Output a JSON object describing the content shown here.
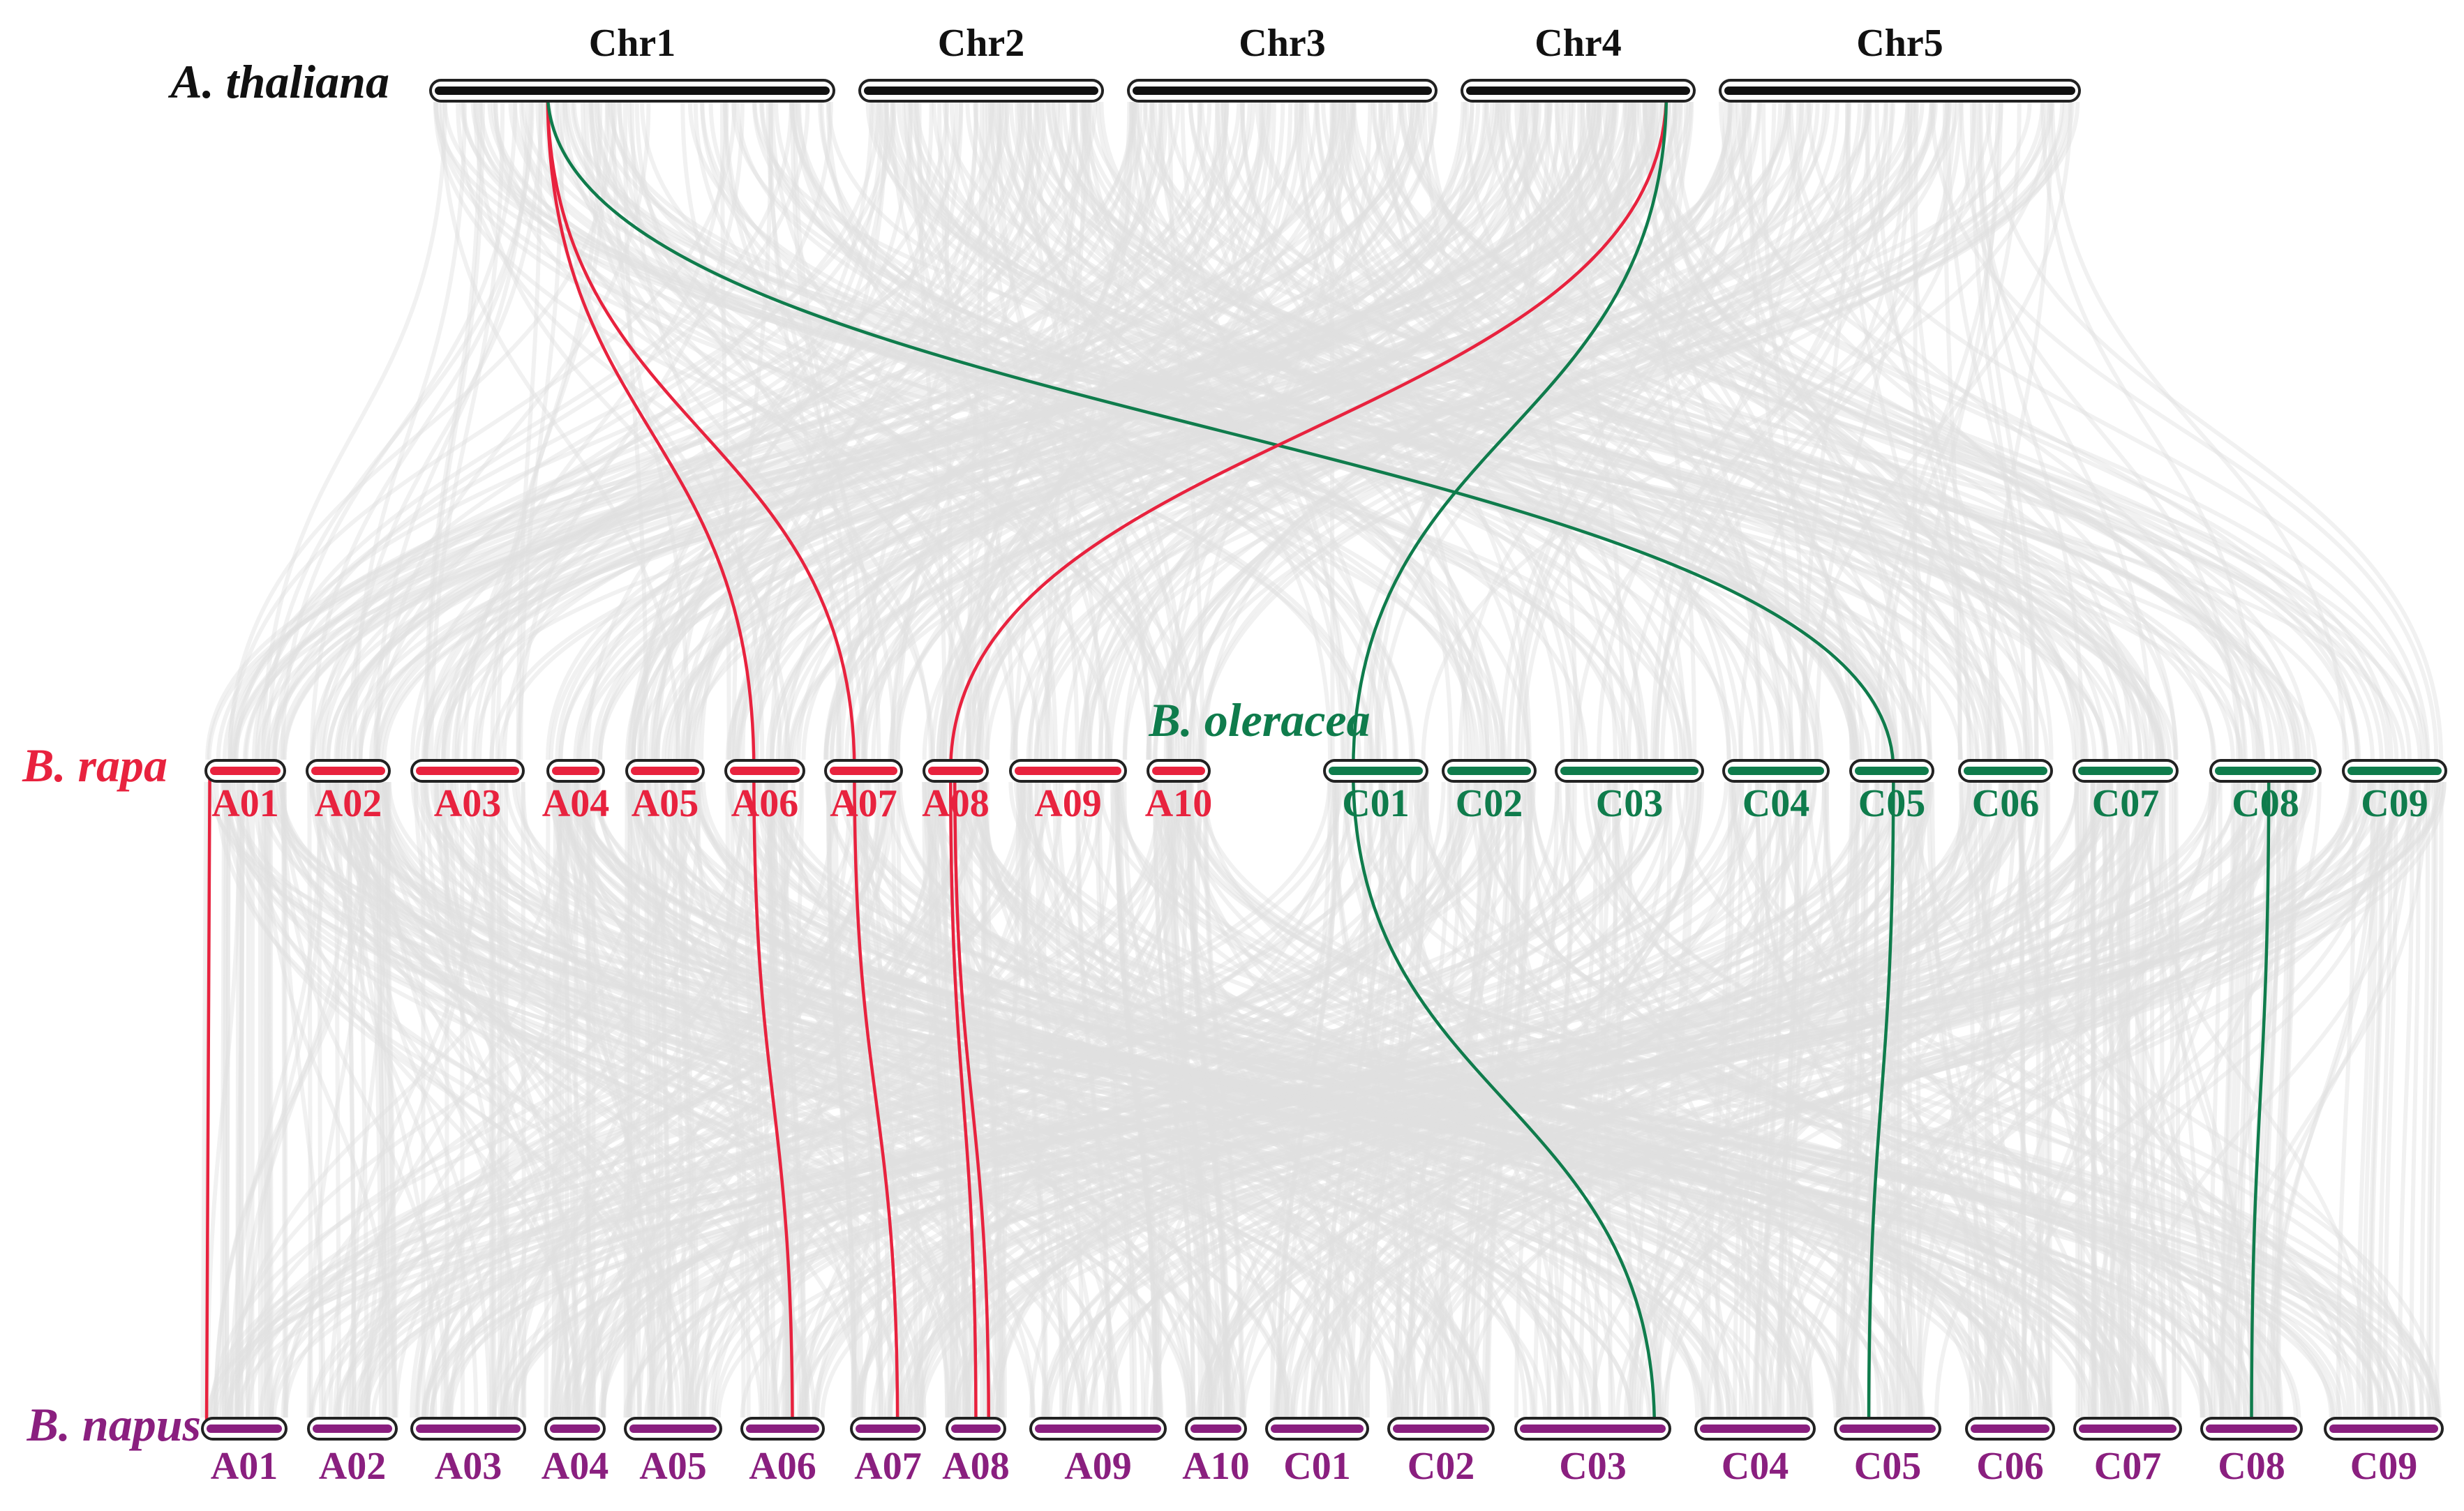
{
  "colors": {
    "thaliana": "#111111",
    "rapa": "#e8223e",
    "oleracea": "#0f7c4c",
    "napus": "#8a1f7f",
    "background_link": "#dfe1e0"
  },
  "species": {
    "thaliana": {
      "name": "A. thaliana",
      "chromosomes": [
        "Chr1",
        "Chr2",
        "Chr3",
        "Chr4",
        "Chr5"
      ]
    },
    "rapa": {
      "name": "B. rapa",
      "chromosomes": [
        "A01",
        "A02",
        "A03",
        "A04",
        "A05",
        "A06",
        "A07",
        "A08",
        "A09",
        "A10"
      ]
    },
    "oleracea": {
      "name": "B. oleracea",
      "chromosomes": [
        "C01",
        "C02",
        "C03",
        "C04",
        "C05",
        "C06",
        "C07",
        "C08",
        "C09"
      ]
    },
    "napus": {
      "name": "B. napus",
      "chromosomes": [
        "A01",
        "A02",
        "A03",
        "A04",
        "A05",
        "A06",
        "A07",
        "A08",
        "A09",
        "A10",
        "C01",
        "C02",
        "C03",
        "C04",
        "C05",
        "C06",
        "C07",
        "C08",
        "C09"
      ]
    }
  },
  "highlighted_links": [
    {
      "from": "thaliana:Chr1",
      "to": "rapa:A06"
    },
    {
      "from": "thaliana:Chr1",
      "to": "rapa:A07"
    },
    {
      "from": "thaliana:Chr1",
      "to": "oleracea:C05"
    },
    {
      "from": "thaliana:Chr4",
      "to": "rapa:A08"
    },
    {
      "from": "thaliana:Chr4",
      "to": "oleracea:C01"
    },
    {
      "from": "rapa:A01",
      "to": "napus:A01"
    },
    {
      "from": "rapa:A06",
      "to": "napus:A06"
    },
    {
      "from": "rapa:A07",
      "to": "napus:A07"
    },
    {
      "from": "rapa:A08",
      "to": "napus:A08"
    },
    {
      "from": "oleracea:C01",
      "to": "napus:C03"
    },
    {
      "from": "oleracea:C05",
      "to": "napus:C05"
    },
    {
      "from": "oleracea:C08",
      "to": "napus:C08"
    }
  ]
}
